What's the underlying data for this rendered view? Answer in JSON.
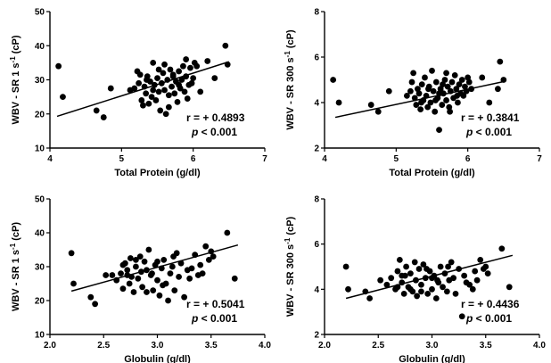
{
  "chart_data": [
    {
      "type": "scatter",
      "xlabel": "Total Protein (g/dl)",
      "ylabel": "WBV - SR 1 s",
      "ylabel_sup": "-1",
      "ylabel_unit": " (cP)",
      "xlim": [
        4,
        7
      ],
      "ylim": [
        10,
        50
      ],
      "xticks": [
        "4",
        "5",
        "6",
        "7"
      ],
      "yticks": [
        "10",
        "20",
        "30",
        "40",
        "50"
      ],
      "r_text": "r =  + 0.4893",
      "p_var": "p",
      "p_text": " < 0.001",
      "fit": {
        "x": [
          4.1,
          6.5
        ],
        "y": [
          19.3,
          35.3
        ]
      },
      "points": [
        [
          4.12,
          34
        ],
        [
          4.18,
          25
        ],
        [
          4.65,
          21
        ],
        [
          4.75,
          19
        ],
        [
          4.85,
          27.5
        ],
        [
          5.12,
          27
        ],
        [
          5.18,
          27.5
        ],
        [
          5.22,
          32.5
        ],
        [
          5.24,
          29
        ],
        [
          5.26,
          31.5
        ],
        [
          5.28,
          24
        ],
        [
          5.3,
          22.5
        ],
        [
          5.32,
          28
        ],
        [
          5.34,
          26
        ],
        [
          5.36,
          31
        ],
        [
          5.38,
          23
        ],
        [
          5.4,
          29.5
        ],
        [
          5.42,
          25
        ],
        [
          5.44,
          35
        ],
        [
          5.46,
          28.5
        ],
        [
          5.48,
          24
        ],
        [
          5.5,
          30.5
        ],
        [
          5.52,
          26.5
        ],
        [
          5.54,
          21
        ],
        [
          5.56,
          29
        ],
        [
          5.58,
          32
        ],
        [
          5.6,
          27
        ],
        [
          5.62,
          20
        ],
        [
          5.64,
          30
        ],
        [
          5.66,
          25.5
        ],
        [
          5.68,
          33
        ],
        [
          5.7,
          28
        ],
        [
          5.72,
          31.5
        ],
        [
          5.74,
          26
        ],
        [
          5.76,
          29.5
        ],
        [
          5.78,
          23.5
        ],
        [
          5.8,
          32.5
        ],
        [
          5.82,
          27.5
        ],
        [
          5.84,
          30
        ],
        [
          5.86,
          34
        ],
        [
          5.88,
          26.5
        ],
        [
          5.9,
          31
        ],
        [
          5.92,
          24.5
        ],
        [
          5.94,
          28.5
        ],
        [
          5.96,
          33.5
        ],
        [
          5.98,
          29
        ],
        [
          6.0,
          30.5
        ],
        [
          6.02,
          35
        ],
        [
          6.05,
          34
        ],
        [
          6.1,
          26.5
        ],
        [
          6.2,
          35.5
        ],
        [
          6.3,
          30.5
        ],
        [
          6.45,
          40
        ],
        [
          6.48,
          34.5
        ],
        [
          5.66,
          22
        ],
        [
          5.72,
          31
        ],
        [
          5.8,
          28.5
        ],
        [
          5.52,
          33
        ],
        [
          5.44,
          27
        ],
        [
          5.9,
          36
        ],
        [
          5.6,
          34.5
        ],
        [
          5.35,
          30
        ]
      ]
    },
    {
      "type": "scatter",
      "xlabel": "Total Protein (g/dl)",
      "ylabel": "WBV - SR 300 s",
      "ylabel_sup": "-1",
      "ylabel_unit": " (cP)",
      "xlim": [
        4,
        7
      ],
      "ylim": [
        2,
        8
      ],
      "xticks": [
        "4",
        "5",
        "6",
        "7"
      ],
      "yticks": [
        "2",
        "4",
        "6",
        "8"
      ],
      "r_text": "r =  + 0.3841",
      "p_var": "p",
      "p_text": " < 0.001",
      "fit": {
        "x": [
          4.15,
          6.5
        ],
        "y": [
          3.35,
          4.92
        ]
      },
      "points": [
        [
          4.12,
          5.0
        ],
        [
          4.2,
          4.0
        ],
        [
          4.65,
          3.9
        ],
        [
          4.75,
          3.6
        ],
        [
          4.9,
          4.5
        ],
        [
          5.15,
          4.3
        ],
        [
          5.2,
          4.5
        ],
        [
          5.22,
          4.9
        ],
        [
          5.24,
          5.3
        ],
        [
          5.26,
          4.2
        ],
        [
          5.28,
          3.9
        ],
        [
          5.3,
          4.6
        ],
        [
          5.32,
          4.4
        ],
        [
          5.34,
          3.7
        ],
        [
          5.36,
          4.8
        ],
        [
          5.38,
          4.1
        ],
        [
          5.4,
          5.1
        ],
        [
          5.42,
          4.3
        ],
        [
          5.44,
          3.8
        ],
        [
          5.46,
          4.7
        ],
        [
          5.48,
          4.0
        ],
        [
          5.5,
          5.4
        ],
        [
          5.52,
          4.5
        ],
        [
          5.54,
          3.6
        ],
        [
          5.56,
          4.9
        ],
        [
          5.58,
          4.2
        ],
        [
          5.6,
          2.8
        ],
        [
          5.62,
          4.6
        ],
        [
          5.64,
          3.9
        ],
        [
          5.66,
          4.4
        ],
        [
          5.68,
          5.0
        ],
        [
          5.7,
          4.1
        ],
        [
          5.72,
          4.7
        ],
        [
          5.74,
          3.8
        ],
        [
          5.76,
          4.5
        ],
        [
          5.78,
          4.9
        ],
        [
          5.8,
          4.2
        ],
        [
          5.82,
          5.2
        ],
        [
          5.84,
          4.6
        ],
        [
          5.86,
          4.0
        ],
        [
          5.88,
          4.8
        ],
        [
          5.9,
          4.4
        ],
        [
          5.92,
          5.0
        ],
        [
          5.94,
          4.3
        ],
        [
          5.96,
          4.7
        ],
        [
          5.98,
          4.5
        ],
        [
          6.0,
          5.1
        ],
        [
          6.02,
          4.9
        ],
        [
          6.05,
          4.6
        ],
        [
          6.2,
          5.1
        ],
        [
          6.3,
          4.0
        ],
        [
          6.42,
          4.6
        ],
        [
          6.45,
          5.8
        ],
        [
          6.5,
          5.0
        ],
        [
          5.55,
          4.1
        ],
        [
          5.65,
          4.8
        ],
        [
          5.75,
          3.6
        ],
        [
          5.85,
          4.3
        ],
        [
          5.45,
          4.6
        ],
        [
          5.35,
          4.0
        ],
        [
          5.7,
          5.3
        ],
        [
          5.6,
          4.4
        ]
      ]
    },
    {
      "type": "scatter",
      "xlabel": "Globulin (g/dl)",
      "ylabel": "WBV - SR 1 s",
      "ylabel_sup": "-1",
      "ylabel_unit": " (cP)",
      "xlim": [
        2.0,
        4.0
      ],
      "ylim": [
        10,
        50
      ],
      "xticks": [
        "2.0",
        "2.5",
        "3.0",
        "3.5",
        "4.0"
      ],
      "yticks": [
        "10",
        "20",
        "30",
        "40",
        "50"
      ],
      "r_text": "r =  + 0.5041",
      "p_var": "p",
      "p_text": " < 0.001",
      "fit": {
        "x": [
          2.2,
          3.75
        ],
        "y": [
          22.8,
          36.4
        ]
      },
      "points": [
        [
          2.2,
          34
        ],
        [
          2.22,
          25
        ],
        [
          2.38,
          21
        ],
        [
          2.42,
          19
        ],
        [
          2.52,
          27.5
        ],
        [
          2.58,
          27.5
        ],
        [
          2.62,
          26
        ],
        [
          2.66,
          28
        ],
        [
          2.68,
          23.5
        ],
        [
          2.7,
          31
        ],
        [
          2.72,
          29
        ],
        [
          2.74,
          25
        ],
        [
          2.75,
          32.5
        ],
        [
          2.76,
          27
        ],
        [
          2.78,
          22.5
        ],
        [
          2.8,
          30
        ],
        [
          2.82,
          26.5
        ],
        [
          2.84,
          33
        ],
        [
          2.85,
          28.5
        ],
        [
          2.86,
          24
        ],
        [
          2.88,
          31.5
        ],
        [
          2.9,
          29
        ],
        [
          2.92,
          35
        ],
        [
          2.94,
          27.5
        ],
        [
          2.96,
          23
        ],
        [
          2.98,
          30.5
        ],
        [
          3.0,
          26
        ],
        [
          3.02,
          21.5
        ],
        [
          3.04,
          29.5
        ],
        [
          3.06,
          32
        ],
        [
          3.08,
          25
        ],
        [
          3.1,
          20
        ],
        [
          3.12,
          28
        ],
        [
          3.14,
          30
        ],
        [
          3.16,
          23
        ],
        [
          3.18,
          34
        ],
        [
          3.2,
          27
        ],
        [
          3.22,
          31
        ],
        [
          3.25,
          21
        ],
        [
          3.28,
          29
        ],
        [
          3.3,
          26.5
        ],
        [
          3.35,
          33.5
        ],
        [
          3.38,
          27.5
        ],
        [
          3.4,
          30.5
        ],
        [
          3.45,
          36
        ],
        [
          3.48,
          32
        ],
        [
          3.5,
          34.5
        ],
        [
          3.52,
          33
        ],
        [
          3.65,
          40
        ],
        [
          3.72,
          26.5
        ],
        [
          2.72,
          27.5
        ],
        [
          2.8,
          32
        ],
        [
          2.95,
          28
        ],
        [
          3.05,
          24.5
        ],
        [
          3.15,
          33
        ],
        [
          2.9,
          22.5
        ],
        [
          3.32,
          29.5
        ],
        [
          2.68,
          30.5
        ],
        [
          3.0,
          31.5
        ],
        [
          3.42,
          28
        ]
      ]
    },
    {
      "type": "scatter",
      "xlabel": "Globulin (g/dl)",
      "ylabel": "WBV - SR 300 s",
      "ylabel_sup": "-1",
      "ylabel_unit": " (cP)",
      "xlim": [
        2.0,
        4.0
      ],
      "ylim": [
        2,
        8
      ],
      "xticks": [
        "2.0",
        "2.5",
        "3.0",
        "3.5",
        "4.0"
      ],
      "yticks": [
        "2",
        "4",
        "6",
        "8"
      ],
      "r_text": "r =  + 0.4436",
      "p_var": "p",
      "p_text": " < 0.001",
      "fit": {
        "x": [
          2.2,
          3.75
        ],
        "y": [
          3.6,
          5.5
        ]
      },
      "points": [
        [
          2.2,
          5.0
        ],
        [
          2.22,
          4.0
        ],
        [
          2.38,
          3.9
        ],
        [
          2.42,
          3.6
        ],
        [
          2.52,
          4.4
        ],
        [
          2.58,
          4.2
        ],
        [
          2.62,
          4.5
        ],
        [
          2.66,
          4.0
        ],
        [
          2.68,
          4.8
        ],
        [
          2.7,
          5.3
        ],
        [
          2.72,
          4.3
        ],
        [
          2.74,
          3.8
        ],
        [
          2.75,
          4.6
        ],
        [
          2.76,
          5.0
        ],
        [
          2.78,
          4.1
        ],
        [
          2.8,
          4.7
        ],
        [
          2.82,
          3.9
        ],
        [
          2.84,
          5.2
        ],
        [
          2.85,
          4.4
        ],
        [
          2.86,
          3.7
        ],
        [
          2.88,
          4.9
        ],
        [
          2.9,
          4.2
        ],
        [
          2.92,
          5.1
        ],
        [
          2.94,
          4.5
        ],
        [
          2.96,
          3.8
        ],
        [
          2.98,
          4.8
        ],
        [
          3.0,
          4.0
        ],
        [
          3.02,
          4.6
        ],
        [
          3.04,
          3.6
        ],
        [
          3.06,
          4.3
        ],
        [
          3.08,
          5.0
        ],
        [
          3.1,
          4.1
        ],
        [
          3.12,
          4.7
        ],
        [
          3.14,
          3.9
        ],
        [
          3.16,
          4.4
        ],
        [
          3.18,
          5.2
        ],
        [
          3.2,
          4.5
        ],
        [
          3.22,
          3.8
        ],
        [
          3.25,
          4.9
        ],
        [
          3.28,
          2.8
        ],
        [
          3.3,
          4.6
        ],
        [
          3.35,
          4.2
        ],
        [
          3.38,
          4.0
        ],
        [
          3.4,
          4.8
        ],
        [
          3.45,
          5.3
        ],
        [
          3.48,
          4.9
        ],
        [
          3.5,
          5.0
        ],
        [
          3.52,
          4.7
        ],
        [
          3.65,
          5.8
        ],
        [
          3.72,
          4.1
        ],
        [
          2.72,
          4.6
        ],
        [
          2.8,
          4.0
        ],
        [
          2.95,
          4.9
        ],
        [
          3.05,
          4.4
        ],
        [
          3.15,
          5.0
        ],
        [
          2.9,
          3.9
        ],
        [
          3.32,
          4.3
        ],
        [
          2.68,
          4.1
        ],
        [
          3.0,
          4.5
        ],
        [
          3.42,
          4.4
        ]
      ]
    }
  ]
}
